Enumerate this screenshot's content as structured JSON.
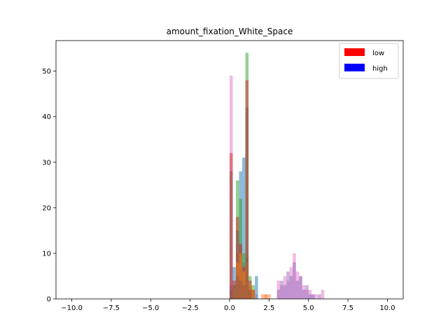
{
  "chart_data": {
    "type": "bar",
    "title": "amount_fixation_White_Space",
    "xlabel": "",
    "ylabel": "",
    "xlim": [
      -11,
      11
    ],
    "ylim": [
      0,
      56.7
    ],
    "xticks": [
      -10,
      -7.5,
      -5,
      -2.5,
      0,
      2.5,
      5,
      7.5,
      10
    ],
    "xtick_labels": [
      "−10.0",
      "−7.5",
      "−5.0",
      "−2.5",
      "0.0",
      "2.5",
      "5.0",
      "7.5",
      "10.0"
    ],
    "yticks": [
      0,
      10,
      20,
      30,
      40,
      50
    ],
    "ytick_labels": [
      "0",
      "10",
      "20",
      "30",
      "40",
      "50"
    ],
    "legend": {
      "placement": "top-right",
      "entries": [
        {
          "label": "low",
          "color": "#ff0000"
        },
        {
          "label": "high",
          "color": "#0000ff"
        }
      ]
    },
    "series": [
      {
        "color": "#e377c2",
        "opacity": 0.5,
        "bins": [
          [
            0.0,
            49
          ],
          [
            0.2,
            3
          ],
          [
            0.4,
            10
          ],
          [
            0.6,
            12
          ],
          [
            0.8,
            8
          ],
          [
            1.0,
            5
          ],
          [
            1.2,
            3
          ],
          [
            1.4,
            2
          ],
          [
            1.6,
            1
          ],
          [
            2.2,
            1
          ],
          [
            3.0,
            4
          ],
          [
            3.2,
            3
          ],
          [
            3.4,
            5
          ],
          [
            3.6,
            4
          ],
          [
            3.8,
            7
          ],
          [
            4.0,
            10
          ],
          [
            4.2,
            6
          ],
          [
            4.4,
            5
          ],
          [
            4.6,
            3
          ],
          [
            4.8,
            2
          ],
          [
            5.0,
            2
          ],
          [
            5.2,
            1
          ],
          [
            5.4,
            1
          ],
          [
            5.8,
            2
          ]
        ]
      },
      {
        "color": "#9467bd",
        "opacity": 0.5,
        "bins": [
          [
            0.0,
            3
          ],
          [
            0.2,
            2
          ],
          [
            0.4,
            8
          ],
          [
            0.6,
            6
          ],
          [
            0.8,
            4
          ],
          [
            1.0,
            3
          ],
          [
            1.2,
            2
          ],
          [
            3.0,
            2
          ],
          [
            3.2,
            4
          ],
          [
            3.4,
            3
          ],
          [
            3.6,
            6
          ],
          [
            3.8,
            5
          ],
          [
            4.0,
            8
          ],
          [
            4.2,
            4
          ],
          [
            4.4,
            5
          ],
          [
            4.6,
            2
          ],
          [
            4.8,
            3
          ],
          [
            5.0,
            1
          ],
          [
            5.2,
            1
          ],
          [
            5.6,
            1
          ]
        ]
      },
      {
        "color": "#1f77b4",
        "opacity": 0.5,
        "bins": [
          [
            0.0,
            2
          ],
          [
            0.2,
            7
          ],
          [
            0.4,
            15
          ],
          [
            0.6,
            28
          ],
          [
            0.8,
            31
          ],
          [
            1.0,
            9
          ],
          [
            1.2,
            3
          ],
          [
            1.4,
            2
          ],
          [
            1.6,
            5
          ]
        ]
      },
      {
        "color": "#2ca02c",
        "opacity": 0.5,
        "bins": [
          [
            0.2,
            3
          ],
          [
            0.4,
            26
          ],
          [
            0.6,
            22
          ],
          [
            0.8,
            10
          ],
          [
            1.0,
            54
          ],
          [
            1.2,
            5
          ],
          [
            1.4,
            3
          ]
        ]
      },
      {
        "color": "#d62728",
        "opacity": 0.5,
        "bins": [
          [
            0.0,
            32
          ],
          [
            0.2,
            4
          ],
          [
            0.4,
            18
          ],
          [
            0.6,
            12
          ],
          [
            0.8,
            7
          ],
          [
            1.0,
            48
          ],
          [
            1.2,
            4
          ],
          [
            1.4,
            2
          ]
        ]
      },
      {
        "color": "#ff7f0e",
        "opacity": 0.5,
        "bins": [
          [
            0.2,
            2
          ],
          [
            0.4,
            8
          ],
          [
            0.6,
            10
          ],
          [
            0.8,
            6
          ],
          [
            1.0,
            8
          ],
          [
            1.2,
            3
          ],
          [
            1.4,
            2
          ],
          [
            2.0,
            1
          ],
          [
            2.2,
            1
          ],
          [
            2.4,
            1
          ]
        ]
      },
      {
        "color": "#8c564b",
        "opacity": 0.5,
        "bins": [
          [
            0.0,
            28
          ],
          [
            0.2,
            2
          ],
          [
            0.4,
            5
          ],
          [
            0.6,
            4
          ],
          [
            0.8,
            3
          ],
          [
            1.0,
            42
          ],
          [
            1.2,
            2
          ]
        ]
      }
    ],
    "bin_width": 0.2
  }
}
